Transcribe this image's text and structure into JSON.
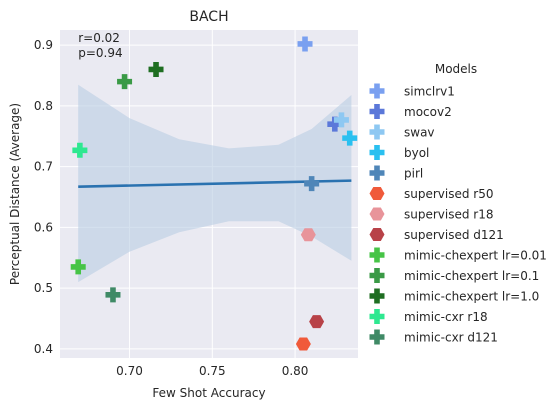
{
  "chart_data": {
    "type": "scatter",
    "title": "BACH",
    "xlabel": "Few Shot Accuracy",
    "ylabel": "Perceptual Distance (Average)",
    "xlim": [
      0.658,
      0.838
    ],
    "ylim": [
      0.385,
      0.925
    ],
    "xticks": [
      0.7,
      0.75,
      0.8
    ],
    "xtick_labels": [
      "0.70",
      "0.75",
      "0.80"
    ],
    "yticks": [
      0.4,
      0.5,
      0.6,
      0.7,
      0.8,
      0.9
    ],
    "ytick_labels": [
      "0.4",
      "0.5",
      "0.6",
      "0.7",
      "0.8",
      "0.9"
    ],
    "grid": true,
    "annotation": {
      "lines": [
        "r=0.02",
        "p=0.94"
      ],
      "x": 0.669,
      "y": 0.905
    },
    "regression": {
      "x": [
        0.669,
        0.834
      ],
      "y": [
        0.667,
        0.677
      ],
      "ci_upper": [
        [
          0.669,
          0.835
        ],
        [
          0.7,
          0.78
        ],
        [
          0.73,
          0.745
        ],
        [
          0.76,
          0.73
        ],
        [
          0.79,
          0.736
        ],
        [
          0.81,
          0.762
        ],
        [
          0.834,
          0.818
        ]
      ],
      "ci_lower": [
        [
          0.669,
          0.51
        ],
        [
          0.7,
          0.56
        ],
        [
          0.73,
          0.592
        ],
        [
          0.76,
          0.61
        ],
        [
          0.79,
          0.61
        ],
        [
          0.81,
          0.585
        ],
        [
          0.834,
          0.545
        ]
      ]
    },
    "legend": {
      "title": "Models",
      "placement": "right"
    },
    "series": [
      {
        "name": "simclrv1",
        "marker": "plus",
        "color": "#7aa0f0",
        "points": [
          [
            0.806,
            0.902
          ]
        ]
      },
      {
        "name": "mocov2",
        "marker": "plus",
        "color": "#5b78d9",
        "points": [
          [
            0.824,
            0.77
          ]
        ]
      },
      {
        "name": "swav",
        "marker": "plus",
        "color": "#8ec8f2",
        "points": [
          [
            0.828,
            0.777
          ]
        ]
      },
      {
        "name": "byol",
        "marker": "plus",
        "color": "#2ac0f0",
        "points": [
          [
            0.833,
            0.747
          ]
        ]
      },
      {
        "name": "pirl",
        "marker": "plus",
        "color": "#4f86b8",
        "points": [
          [
            0.81,
            0.672
          ]
        ]
      },
      {
        "name": "supervised r50",
        "marker": "hexagon",
        "color": "#f05a3a",
        "points": [
          [
            0.805,
            0.408
          ]
        ]
      },
      {
        "name": "supervised r18",
        "marker": "hexagon",
        "color": "#e8949a",
        "points": [
          [
            0.808,
            0.588
          ]
        ]
      },
      {
        "name": "supervised d121",
        "marker": "hexagon",
        "color": "#b84248",
        "points": [
          [
            0.813,
            0.445
          ]
        ]
      },
      {
        "name": "mimic-chexpert lr=0.01",
        "marker": "plus",
        "color": "#46c446",
        "points": [
          [
            0.669,
            0.535
          ]
        ]
      },
      {
        "name": "mimic-chexpert lr=0.1",
        "marker": "plus",
        "color": "#3a9a46",
        "points": [
          [
            0.697,
            0.84
          ]
        ]
      },
      {
        "name": "mimic-chexpert lr=1.0",
        "marker": "plus",
        "color": "#1f6e22",
        "points": [
          [
            0.716,
            0.86
          ]
        ]
      },
      {
        "name": "mimic-cxr r18",
        "marker": "plus",
        "color": "#2ee890",
        "points": [
          [
            0.67,
            0.727
          ]
        ]
      },
      {
        "name": "mimic-cxr d121",
        "marker": "plus",
        "color": "#3f8a66",
        "points": [
          [
            0.69,
            0.489
          ]
        ]
      }
    ]
  }
}
